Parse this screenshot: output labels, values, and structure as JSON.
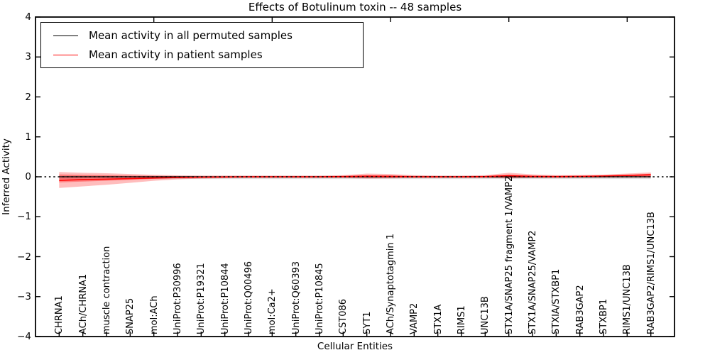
{
  "title": "Effects of Botulinum toxin -- 48 samples",
  "axes": {
    "xlabel": "Cellular Entities",
    "ylabel": "Inferred Activity",
    "y_ticks": [
      {
        "value": 4,
        "label": "4"
      },
      {
        "value": 3,
        "label": "3"
      },
      {
        "value": 2,
        "label": "2"
      },
      {
        "value": 1,
        "label": "1"
      },
      {
        "value": 0,
        "label": "0"
      },
      {
        "value": -1,
        "label": "−1"
      },
      {
        "value": -2,
        "label": "−2"
      },
      {
        "value": -3,
        "label": "−3"
      },
      {
        "value": -4,
        "label": "−4"
      }
    ]
  },
  "legend": {
    "entries": [
      {
        "label": "Mean activity in all permuted samples",
        "color": "#000000"
      },
      {
        "label": "Mean activity in patient samples",
        "color": "#ff0000"
      }
    ]
  },
  "chart_data": {
    "type": "line",
    "title": "Effects of Botulinum toxin -- 48 samples",
    "xlabel": "Cellular Entities",
    "ylabel": "Inferred Activity",
    "ylim": [
      -4,
      4
    ],
    "grid": false,
    "legend_position": "upper left",
    "top_axis_tick_positions": [
      5,
      10,
      15,
      20,
      25
    ],
    "categories": [
      "CHRNA1",
      "ACh/CHRNA1",
      "muscle contraction",
      "SNAP25",
      "mol:ACh",
      "UniProt:P30996",
      "UniProt:P19321",
      "UniProt:P10844",
      "UniProt:Q00496",
      "mol:Ca2+",
      "UniProt:Q60393",
      "UniProt:P10845",
      "CST086",
      "SYT1",
      "ACh/Synaptotagmin 1",
      "VAMP2",
      "STX1A",
      "RIMS1",
      "UNC13B",
      "STX1A/SNAP25 fragment 1/VAMP2",
      "STX1A/SNAP25/VAMP2",
      "STXIA/STXBP1",
      "RAB3GAP2",
      "STXBP1",
      "RIMS1/UNC13B",
      "RAB3GAP2/RIMS1/UNC13B"
    ],
    "series": [
      {
        "name": "Mean activity in all permuted samples",
        "color": "#000000",
        "width": 1.2,
        "values": [
          0,
          0,
          0,
          0,
          0,
          0,
          0,
          0,
          0,
          0,
          0,
          0,
          0,
          0,
          0,
          0,
          0,
          0,
          0,
          0,
          0,
          0,
          0,
          0,
          0,
          0
        ]
      },
      {
        "name": "Mean activity in patient samples",
        "color": "#ff0000",
        "width": 1.6,
        "values": [
          -0.09,
          -0.07,
          -0.06,
          -0.045,
          -0.03,
          -0.02,
          -0.01,
          -0.005,
          0,
          0,
          0,
          0,
          0.005,
          0.015,
          0.01,
          0,
          0,
          0,
          0.005,
          0.025,
          0.01,
          0.005,
          0.01,
          0.02,
          0.035,
          0.05
        ]
      }
    ],
    "zero_line": {
      "y": 0,
      "style": "dotted",
      "color": "#000000"
    },
    "bands": [
      {
        "name": "permuted-std-band",
        "color": "#999999",
        "opacity": 0.3,
        "upper": [
          0.025,
          0.025,
          0.025,
          0.025,
          0.025,
          0.025,
          0.025,
          0.025,
          0.025,
          0.025,
          0.025,
          0.025,
          0.025,
          0.025,
          0.025,
          0.025,
          0.025,
          0.025,
          0.025,
          0.025,
          0.025,
          0.025,
          0.025,
          0.025,
          0.025,
          0.025
        ],
        "lower": [
          -0.055,
          -0.055,
          -0.055,
          -0.055,
          -0.055,
          -0.055,
          -0.055,
          -0.055,
          -0.055,
          -0.055,
          -0.055,
          -0.055,
          -0.055,
          -0.055,
          -0.055,
          -0.055,
          -0.055,
          -0.055,
          -0.055,
          -0.055,
          -0.055,
          -0.055,
          -0.055,
          -0.055,
          -0.055,
          -0.055
        ]
      },
      {
        "name": "patient-std-outer-band",
        "color": "#ff0000",
        "opacity": 0.26,
        "upper": [
          0.12,
          0.1,
          0.09,
          0.07,
          0.05,
          0.035,
          0.03,
          0.028,
          0.028,
          0.028,
          0.028,
          0.028,
          0.04,
          0.08,
          0.07,
          0.04,
          0.03,
          0.03,
          0.04,
          0.1,
          0.06,
          0.04,
          0.045,
          0.055,
          0.08,
          0.11
        ],
        "lower": [
          -0.28,
          -0.24,
          -0.2,
          -0.15,
          -0.1,
          -0.065,
          -0.045,
          -0.035,
          -0.03,
          -0.03,
          -0.03,
          -0.03,
          -0.03,
          -0.045,
          -0.04,
          -0.03,
          -0.03,
          -0.03,
          -0.03,
          -0.04,
          -0.03,
          -0.03,
          -0.025,
          -0.02,
          -0.02,
          -0.02
        ]
      },
      {
        "name": "patient-std-inner-band",
        "color": "#ff0000",
        "opacity": 0.32,
        "upper": [
          0.06,
          0.05,
          0.04,
          0.03,
          0.022,
          0.015,
          0.012,
          0.012,
          0.012,
          0.012,
          0.012,
          0.012,
          0.02,
          0.04,
          0.035,
          0.02,
          0.015,
          0.015,
          0.02,
          0.055,
          0.03,
          0.02,
          0.025,
          0.03,
          0.05,
          0.075
        ],
        "lower": [
          -0.14,
          -0.12,
          -0.1,
          -0.075,
          -0.05,
          -0.032,
          -0.022,
          -0.018,
          -0.015,
          -0.015,
          -0.015,
          -0.015,
          -0.015,
          -0.022,
          -0.02,
          -0.015,
          -0.015,
          -0.015,
          -0.015,
          -0.02,
          -0.015,
          -0.015,
          -0.012,
          -0.005,
          0,
          0.005
        ]
      }
    ]
  }
}
